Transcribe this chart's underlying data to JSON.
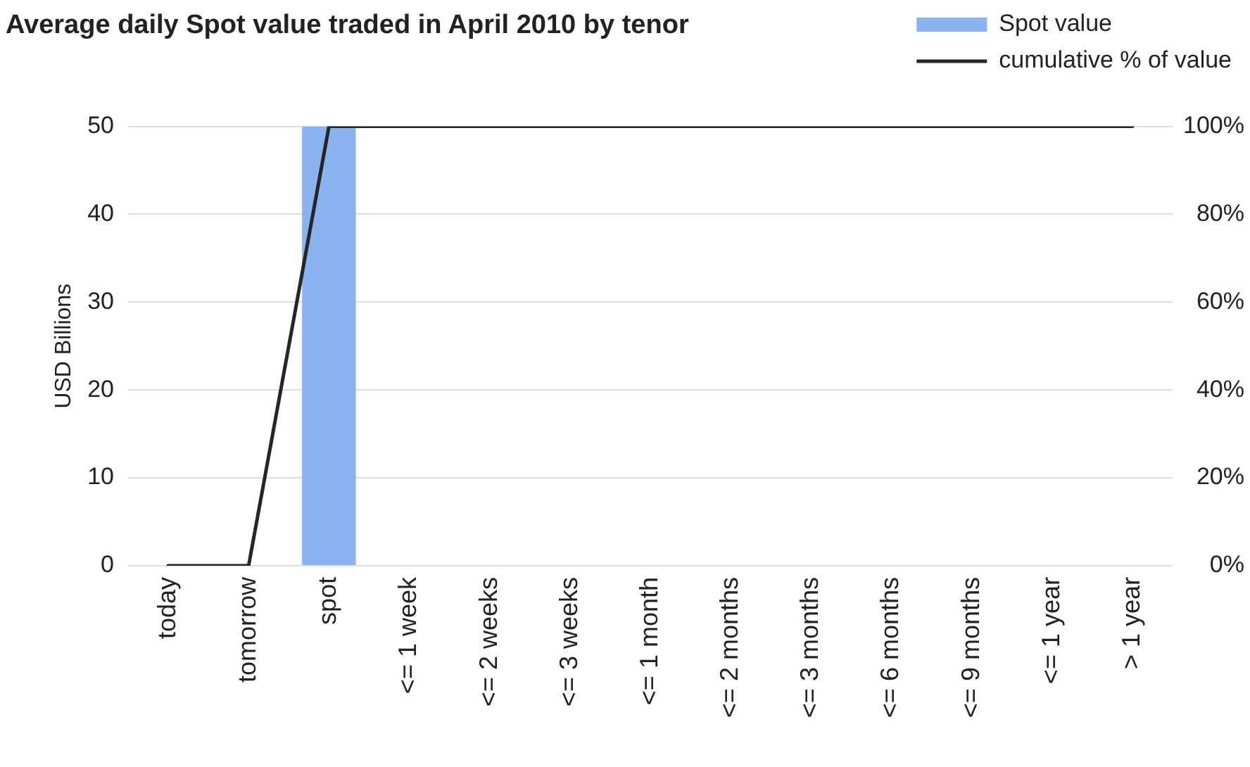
{
  "chart_data": {
    "type": "bar",
    "title": "Average daily Spot value traded in April 2010 by tenor",
    "ylabel": "USD Billions",
    "categories": [
      "today",
      "tomorrow",
      "spot",
      "<= 1 week",
      "<= 2 weeks",
      "<= 3 weeks",
      "<= 1 month",
      "<= 2 months",
      "<= 3 months",
      "<= 6 months",
      "<= 9 months",
      "<= 1 year",
      "> 1 year"
    ],
    "series": [
      {
        "name": "Spot value",
        "color": "#8ab4f0",
        "values": [
          0,
          0,
          50,
          0,
          0,
          0,
          0,
          0,
          0,
          0,
          0,
          0,
          0
        ]
      },
      {
        "name": "cumulative % of value",
        "type": "line",
        "axis": "y2",
        "color": "#262626",
        "values": [
          0,
          0,
          100,
          100,
          100,
          100,
          100,
          100,
          100,
          100,
          100,
          100,
          100
        ]
      }
    ],
    "ylim": [
      0,
      50
    ],
    "yticks": [
      0,
      10,
      20,
      30,
      40,
      50
    ],
    "y2lim": [
      0,
      100
    ],
    "y2ticks": [
      {
        "value": 0,
        "label": "0%"
      },
      {
        "value": 20,
        "label": "20%"
      },
      {
        "value": 40,
        "label": "40%"
      },
      {
        "value": 60,
        "label": "60%"
      },
      {
        "value": 80,
        "label": "80%"
      },
      {
        "value": 100,
        "label": "100%"
      }
    ],
    "grid": "y",
    "legend": "top right",
    "marker": "none"
  }
}
